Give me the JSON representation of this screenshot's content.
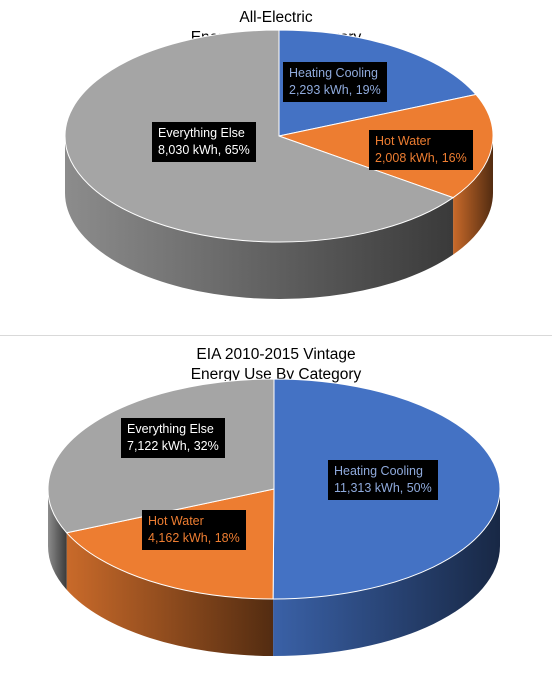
{
  "chart_data": [
    {
      "type": "pie",
      "title_lines": [
        "All-Electric",
        "Energy Use By Category"
      ],
      "slices": [
        {
          "label": "Heating Cooling",
          "value_text": "2,293 kWh, 19%",
          "value": 2293,
          "percent": 19,
          "color": "#4472C4",
          "label_color": "#8FAADC"
        },
        {
          "label": "Hot Water",
          "value_text": "2,008 kWh, 16%",
          "value": 2008,
          "percent": 16,
          "color": "#ED7D31",
          "label_color": "#ED7D31"
        },
        {
          "label": "Everything Else",
          "value_text": "8,030 kWh, 65%",
          "value": 8030,
          "percent": 65,
          "color": "#A5A5A5",
          "label_color": "#FFFFFF"
        }
      ]
    },
    {
      "type": "pie",
      "title_lines": [
        "EIA 2010-2015 Vintage",
        "Energy Use By Category"
      ],
      "slices": [
        {
          "label": "Heating Cooling",
          "value_text": "11,313 kWh, 50%",
          "value": 11313,
          "percent": 50,
          "color": "#4472C4",
          "label_color": "#8FAADC"
        },
        {
          "label": "Hot Water",
          "value_text": "4,162 kWh, 18%",
          "value": 4162,
          "percent": 18,
          "color": "#ED7D31",
          "label_color": "#ED7D31"
        },
        {
          "label": "Everything Else",
          "value_text": "7,122 kWh, 32%",
          "value": 7122,
          "percent": 32,
          "color": "#A5A5A5",
          "label_color": "#FFFFFF"
        }
      ]
    }
  ]
}
